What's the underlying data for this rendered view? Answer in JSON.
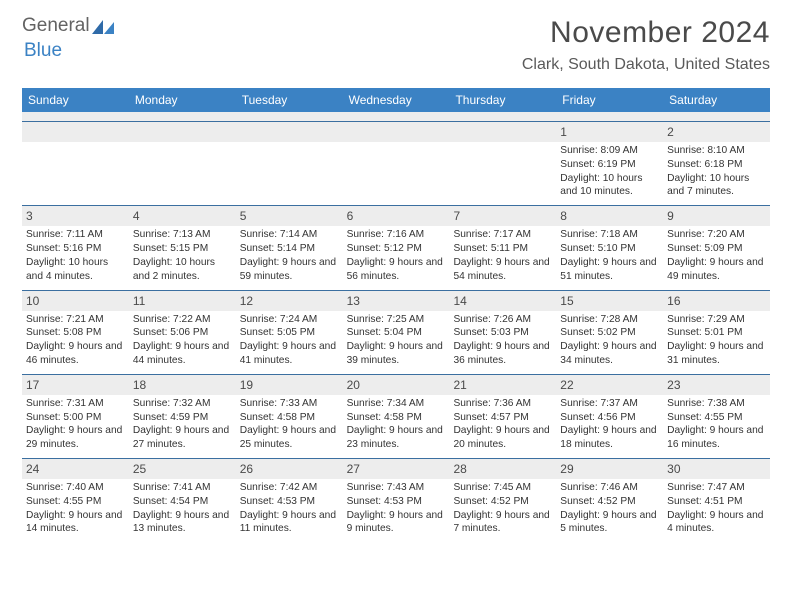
{
  "brand": {
    "part1": "General",
    "part2": "Blue"
  },
  "title": "November 2024",
  "location": "Clark, South Dakota, United States",
  "colors": {
    "header_bg": "#3b82c4",
    "header_text": "#ffffff",
    "daynum_bg": "#ededed",
    "rule": "#3b6fa0",
    "body_text": "#333333",
    "title_text": "#4a4a4a"
  },
  "weekdays": [
    "Sunday",
    "Monday",
    "Tuesday",
    "Wednesday",
    "Thursday",
    "Friday",
    "Saturday"
  ],
  "weeks": [
    [
      {
        "n": "",
        "sr": "",
        "ss": "",
        "dl": ""
      },
      {
        "n": "",
        "sr": "",
        "ss": "",
        "dl": ""
      },
      {
        "n": "",
        "sr": "",
        "ss": "",
        "dl": ""
      },
      {
        "n": "",
        "sr": "",
        "ss": "",
        "dl": ""
      },
      {
        "n": "",
        "sr": "",
        "ss": "",
        "dl": ""
      },
      {
        "n": "1",
        "sr": "Sunrise: 8:09 AM",
        "ss": "Sunset: 6:19 PM",
        "dl": "Daylight: 10 hours and 10 minutes."
      },
      {
        "n": "2",
        "sr": "Sunrise: 8:10 AM",
        "ss": "Sunset: 6:18 PM",
        "dl": "Daylight: 10 hours and 7 minutes."
      }
    ],
    [
      {
        "n": "3",
        "sr": "Sunrise: 7:11 AM",
        "ss": "Sunset: 5:16 PM",
        "dl": "Daylight: 10 hours and 4 minutes."
      },
      {
        "n": "4",
        "sr": "Sunrise: 7:13 AM",
        "ss": "Sunset: 5:15 PM",
        "dl": "Daylight: 10 hours and 2 minutes."
      },
      {
        "n": "5",
        "sr": "Sunrise: 7:14 AM",
        "ss": "Sunset: 5:14 PM",
        "dl": "Daylight: 9 hours and 59 minutes."
      },
      {
        "n": "6",
        "sr": "Sunrise: 7:16 AM",
        "ss": "Sunset: 5:12 PM",
        "dl": "Daylight: 9 hours and 56 minutes."
      },
      {
        "n": "7",
        "sr": "Sunrise: 7:17 AM",
        "ss": "Sunset: 5:11 PM",
        "dl": "Daylight: 9 hours and 54 minutes."
      },
      {
        "n": "8",
        "sr": "Sunrise: 7:18 AM",
        "ss": "Sunset: 5:10 PM",
        "dl": "Daylight: 9 hours and 51 minutes."
      },
      {
        "n": "9",
        "sr": "Sunrise: 7:20 AM",
        "ss": "Sunset: 5:09 PM",
        "dl": "Daylight: 9 hours and 49 minutes."
      }
    ],
    [
      {
        "n": "10",
        "sr": "Sunrise: 7:21 AM",
        "ss": "Sunset: 5:08 PM",
        "dl": "Daylight: 9 hours and 46 minutes."
      },
      {
        "n": "11",
        "sr": "Sunrise: 7:22 AM",
        "ss": "Sunset: 5:06 PM",
        "dl": "Daylight: 9 hours and 44 minutes."
      },
      {
        "n": "12",
        "sr": "Sunrise: 7:24 AM",
        "ss": "Sunset: 5:05 PM",
        "dl": "Daylight: 9 hours and 41 minutes."
      },
      {
        "n": "13",
        "sr": "Sunrise: 7:25 AM",
        "ss": "Sunset: 5:04 PM",
        "dl": "Daylight: 9 hours and 39 minutes."
      },
      {
        "n": "14",
        "sr": "Sunrise: 7:26 AM",
        "ss": "Sunset: 5:03 PM",
        "dl": "Daylight: 9 hours and 36 minutes."
      },
      {
        "n": "15",
        "sr": "Sunrise: 7:28 AM",
        "ss": "Sunset: 5:02 PM",
        "dl": "Daylight: 9 hours and 34 minutes."
      },
      {
        "n": "16",
        "sr": "Sunrise: 7:29 AM",
        "ss": "Sunset: 5:01 PM",
        "dl": "Daylight: 9 hours and 31 minutes."
      }
    ],
    [
      {
        "n": "17",
        "sr": "Sunrise: 7:31 AM",
        "ss": "Sunset: 5:00 PM",
        "dl": "Daylight: 9 hours and 29 minutes."
      },
      {
        "n": "18",
        "sr": "Sunrise: 7:32 AM",
        "ss": "Sunset: 4:59 PM",
        "dl": "Daylight: 9 hours and 27 minutes."
      },
      {
        "n": "19",
        "sr": "Sunrise: 7:33 AM",
        "ss": "Sunset: 4:58 PM",
        "dl": "Daylight: 9 hours and 25 minutes."
      },
      {
        "n": "20",
        "sr": "Sunrise: 7:34 AM",
        "ss": "Sunset: 4:58 PM",
        "dl": "Daylight: 9 hours and 23 minutes."
      },
      {
        "n": "21",
        "sr": "Sunrise: 7:36 AM",
        "ss": "Sunset: 4:57 PM",
        "dl": "Daylight: 9 hours and 20 minutes."
      },
      {
        "n": "22",
        "sr": "Sunrise: 7:37 AM",
        "ss": "Sunset: 4:56 PM",
        "dl": "Daylight: 9 hours and 18 minutes."
      },
      {
        "n": "23",
        "sr": "Sunrise: 7:38 AM",
        "ss": "Sunset: 4:55 PM",
        "dl": "Daylight: 9 hours and 16 minutes."
      }
    ],
    [
      {
        "n": "24",
        "sr": "Sunrise: 7:40 AM",
        "ss": "Sunset: 4:55 PM",
        "dl": "Daylight: 9 hours and 14 minutes."
      },
      {
        "n": "25",
        "sr": "Sunrise: 7:41 AM",
        "ss": "Sunset: 4:54 PM",
        "dl": "Daylight: 9 hours and 13 minutes."
      },
      {
        "n": "26",
        "sr": "Sunrise: 7:42 AM",
        "ss": "Sunset: 4:53 PM",
        "dl": "Daylight: 9 hours and 11 minutes."
      },
      {
        "n": "27",
        "sr": "Sunrise: 7:43 AM",
        "ss": "Sunset: 4:53 PM",
        "dl": "Daylight: 9 hours and 9 minutes."
      },
      {
        "n": "28",
        "sr": "Sunrise: 7:45 AM",
        "ss": "Sunset: 4:52 PM",
        "dl": "Daylight: 9 hours and 7 minutes."
      },
      {
        "n": "29",
        "sr": "Sunrise: 7:46 AM",
        "ss": "Sunset: 4:52 PM",
        "dl": "Daylight: 9 hours and 5 minutes."
      },
      {
        "n": "30",
        "sr": "Sunrise: 7:47 AM",
        "ss": "Sunset: 4:51 PM",
        "dl": "Daylight: 9 hours and 4 minutes."
      }
    ]
  ]
}
